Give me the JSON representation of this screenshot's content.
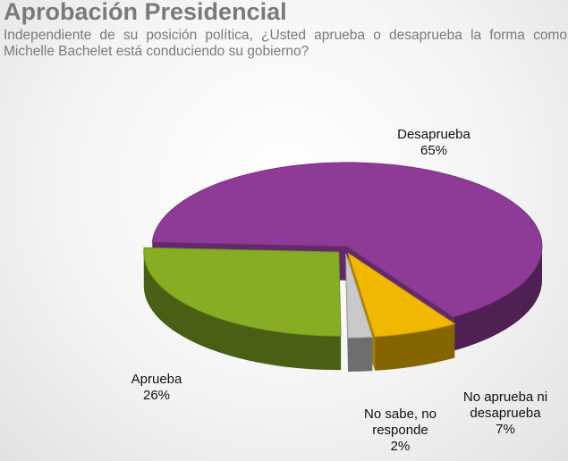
{
  "chart_data": {
    "type": "pie",
    "title": "Aprobación Presidencial",
    "subtitle": "Independiente de su posición política, ¿Usted aprueba o desaprueba la forma como Michelle Bachelet está conduciendo su gobierno?",
    "three_d": true,
    "slices": [
      {
        "label": "Desaprueba",
        "value": 65,
        "value_label": "65%",
        "color": "#8e3b97"
      },
      {
        "label": "No aprueba ni desaprueba",
        "value": 7,
        "value_label": "7%",
        "color": "#f0b800"
      },
      {
        "label": "No sabe, no responde",
        "value": 2,
        "value_label": "2%",
        "color": "#c9c9c9"
      },
      {
        "label": "Aprueba",
        "value": 26,
        "value_label": "26%",
        "color": "#86ad24"
      }
    ]
  }
}
